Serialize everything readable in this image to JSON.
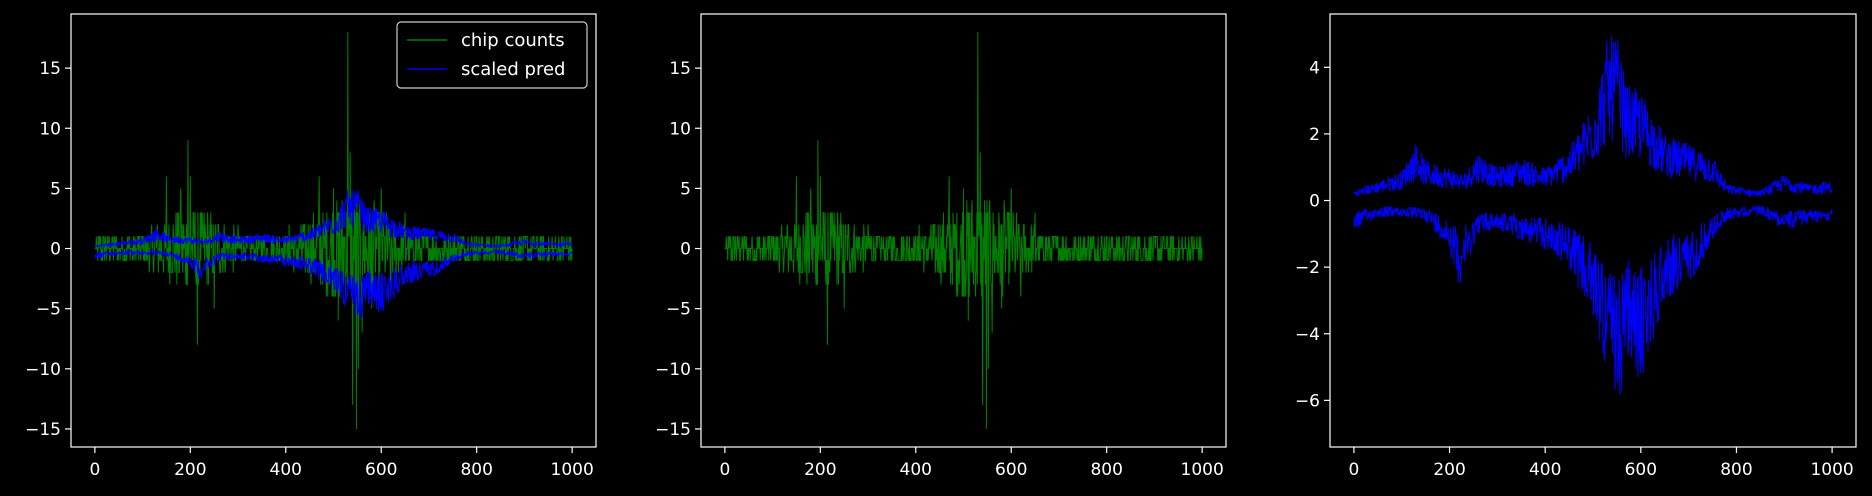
{
  "colors": {
    "background": "#000000",
    "axes_edge": "#ffffff",
    "text": "#ffffff",
    "chip_counts": "#008000",
    "scaled_pred": "#0000ff"
  },
  "chart_data": [
    {
      "type": "line",
      "title": "",
      "xlabel": "",
      "ylabel": "",
      "xlim": [
        -50,
        1050
      ],
      "ylim": [
        -16.5,
        19.5
      ],
      "xticks": [
        0,
        200,
        400,
        600,
        800,
        1000
      ],
      "yticks": [
        -15,
        -10,
        -5,
        0,
        5,
        10,
        15
      ],
      "grid": false,
      "legend": "top-right",
      "series": [
        {
          "name": "chip counts",
          "color": "#008000",
          "description_points": [
            [
              0,
              0
            ],
            [
              50,
              1
            ],
            [
              100,
              -1
            ],
            [
              150,
              3
            ],
            [
              195,
              9
            ],
            [
              200,
              -4
            ],
            [
              215,
              -8
            ],
            [
              250,
              -3
            ],
            [
              300,
              2
            ],
            [
              350,
              -2
            ],
            [
              400,
              1
            ],
            [
              450,
              -3
            ],
            [
              480,
              5
            ],
            [
              500,
              -6
            ],
            [
              520,
              6
            ],
            [
              530,
              18
            ],
            [
              540,
              -13
            ],
            [
              548,
              -15
            ],
            [
              560,
              -6
            ],
            [
              600,
              5
            ],
            [
              650,
              -4
            ],
            [
              700,
              2
            ],
            [
              750,
              -2
            ],
            [
              800,
              1
            ],
            [
              900,
              -1
            ],
            [
              1000,
              0
            ]
          ]
        },
        {
          "name": "scaled pred",
          "color": "#0000ff",
          "description_points": [
            [
              0,
              0.3
            ],
            [
              100,
              0.8
            ],
            [
              150,
              1.7
            ],
            [
              200,
              1.3
            ],
            [
              250,
              1.0
            ],
            [
              300,
              0.9
            ],
            [
              400,
              1.2
            ],
            [
              450,
              1.8
            ],
            [
              500,
              3.0
            ],
            [
              540,
              4.5
            ],
            [
              560,
              3.6
            ],
            [
              600,
              2.5
            ],
            [
              650,
              1.8
            ],
            [
              700,
              1.2
            ],
            [
              750,
              1.0
            ],
            [
              800,
              0.5
            ],
            [
              900,
              0.4
            ],
            [
              1000,
              0.4
            ]
          ]
        }
      ]
    },
    {
      "type": "line",
      "title": "",
      "xlabel": "",
      "ylabel": "",
      "xlim": [
        -50,
        1050
      ],
      "ylim": [
        -16.5,
        19.5
      ],
      "xticks": [
        0,
        200,
        400,
        600,
        800,
        1000
      ],
      "yticks": [
        -15,
        -10,
        -5,
        0,
        5,
        10,
        15
      ],
      "grid": false,
      "series": [
        {
          "color": "#008000",
          "values_ref": "same as chip counts"
        }
      ]
    },
    {
      "type": "line",
      "title": "",
      "xlabel": "",
      "ylabel": "",
      "xlim": [
        -50,
        1050
      ],
      "ylim": [
        -7.4,
        5.6
      ],
      "xticks": [
        0,
        200,
        400,
        600,
        800,
        1000
      ],
      "yticks": [
        -6,
        -4,
        -2,
        0,
        2,
        4
      ],
      "grid": false,
      "series": [
        {
          "color": "#0000ff",
          "upper_envelope": [
            [
              0,
              0.3
            ],
            [
              50,
              0.6
            ],
            [
              100,
              0.9
            ],
            [
              130,
              1.8
            ],
            [
              150,
              1.2
            ],
            [
              200,
              1.0
            ],
            [
              230,
              0.8
            ],
            [
              260,
              1.5
            ],
            [
              300,
              1.0
            ],
            [
              350,
              1.3
            ],
            [
              400,
              1.0
            ],
            [
              450,
              1.6
            ],
            [
              480,
              2.4
            ],
            [
              510,
              3.5
            ],
            [
              530,
              4.9
            ],
            [
              550,
              5.0
            ],
            [
              570,
              3.5
            ],
            [
              600,
              3.3
            ],
            [
              650,
              2.0
            ],
            [
              700,
              1.7
            ],
            [
              750,
              1.4
            ],
            [
              780,
              0.5
            ],
            [
              850,
              0.3
            ],
            [
              900,
              0.8
            ],
            [
              950,
              0.5
            ],
            [
              1000,
              0.6
            ]
          ],
          "lower_envelope": [
            [
              0,
              -0.9
            ],
            [
              50,
              -0.5
            ],
            [
              100,
              -0.5
            ],
            [
              150,
              -0.6
            ],
            [
              200,
              -1.5
            ],
            [
              220,
              -2.6
            ],
            [
              260,
              -1.0
            ],
            [
              300,
              -0.9
            ],
            [
              350,
              -1.2
            ],
            [
              400,
              -1.5
            ],
            [
              450,
              -2.0
            ],
            [
              480,
              -3.0
            ],
            [
              510,
              -4.0
            ],
            [
              530,
              -5.3
            ],
            [
              548,
              -6.7
            ],
            [
              570,
              -5.0
            ],
            [
              600,
              -5.6
            ],
            [
              650,
              -3.0
            ],
            [
              700,
              -2.6
            ],
            [
              750,
              -1.2
            ],
            [
              780,
              -0.6
            ],
            [
              850,
              -0.4
            ],
            [
              900,
              -0.9
            ],
            [
              950,
              -0.7
            ],
            [
              1000,
              -0.6
            ]
          ]
        }
      ]
    }
  ],
  "tick_labels": {
    "p1_y": [
      "15",
      "10",
      "5",
      "0",
      "−5",
      "−10",
      "−15"
    ],
    "p2_y": [
      "15",
      "10",
      "5",
      "0",
      "−5",
      "−10",
      "−15"
    ],
    "p3_y": [
      "4",
      "2",
      "0",
      "−2",
      "−4",
      "−6"
    ],
    "x": [
      "0",
      "200",
      "400",
      "600",
      "800",
      "1000"
    ]
  },
  "legend": {
    "item1": "chip counts",
    "item2": "scaled pred"
  }
}
